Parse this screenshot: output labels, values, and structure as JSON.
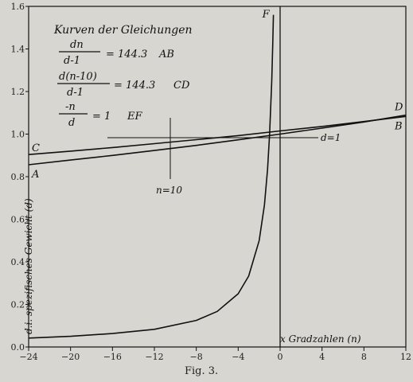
{
  "chart_data": {
    "type": "line",
    "title": "Kurven der Gleichungen",
    "caption": "Fig. 3.",
    "xlabel": "x Gradzahlen (n)",
    "ylabel": "d.i. spezifisches Gewicht (d)",
    "xlim": [
      -24,
      12
    ],
    "ylim": [
      0.0,
      1.6
    ],
    "x_ticks": [
      "-24",
      "-20",
      "-16",
      "-12",
      "-8",
      "-4",
      "0",
      "4",
      "8",
      "12"
    ],
    "y_ticks": [
      "0.0",
      "0.2",
      "0.4",
      "0.6",
      "0.8",
      "1.0",
      "1.2",
      "1.4",
      "1.6"
    ],
    "grid": false,
    "equations": [
      {
        "id": "eq-ab",
        "num": "dn",
        "den": "d-1",
        "rhs": "= 144.3",
        "label": "AB"
      },
      {
        "id": "eq-cd",
        "num": "d(n-10)",
        "den": "d-1",
        "rhs": "= 144.3",
        "label": "CD"
      },
      {
        "id": "eq-ef",
        "num": "-n",
        "den": "d",
        "rhs": "= 1",
        "label": "EF"
      }
    ],
    "annotations": {
      "d1": "d=1",
      "n10": "n=10"
    },
    "series": [
      {
        "name": "AB",
        "start_label": "A",
        "end_label": "B",
        "points": [
          [
            -24,
            0.856
          ],
          [
            -20,
            0.878
          ],
          [
            -16,
            0.9
          ],
          [
            -12,
            0.923
          ],
          [
            -8,
            0.947
          ],
          [
            -4,
            0.973
          ],
          [
            0,
            1.0
          ],
          [
            4,
            1.028
          ],
          [
            8,
            1.057
          ],
          [
            12,
            1.089
          ]
        ]
      },
      {
        "name": "CD",
        "start_label": "C",
        "end_label": "D",
        "points": [
          [
            -24,
            0.904
          ],
          [
            -20,
            0.92
          ],
          [
            -16,
            0.937
          ],
          [
            -12,
            0.955
          ],
          [
            -8,
            0.974
          ],
          [
            -4,
            0.993
          ],
          [
            0,
            1.015
          ],
          [
            4,
            1.036
          ],
          [
            8,
            1.059
          ],
          [
            12,
            1.083
          ]
        ]
      },
      {
        "name": "EF",
        "start_label": "F",
        "points": [
          [
            -24,
            0.042
          ],
          [
            -20,
            0.05
          ],
          [
            -16,
            0.063
          ],
          [
            -12,
            0.083
          ],
          [
            -8,
            0.125
          ],
          [
            -6,
            0.167
          ],
          [
            -4,
            0.25
          ],
          [
            -3,
            0.333
          ],
          [
            -2,
            0.5
          ],
          [
            -1.5,
            0.667
          ],
          [
            -1.2,
            0.833
          ],
          [
            -1,
            1.0
          ],
          [
            -0.8,
            1.25
          ],
          [
            -0.7,
            1.43
          ],
          [
            -0.64,
            1.56
          ]
        ]
      }
    ]
  }
}
